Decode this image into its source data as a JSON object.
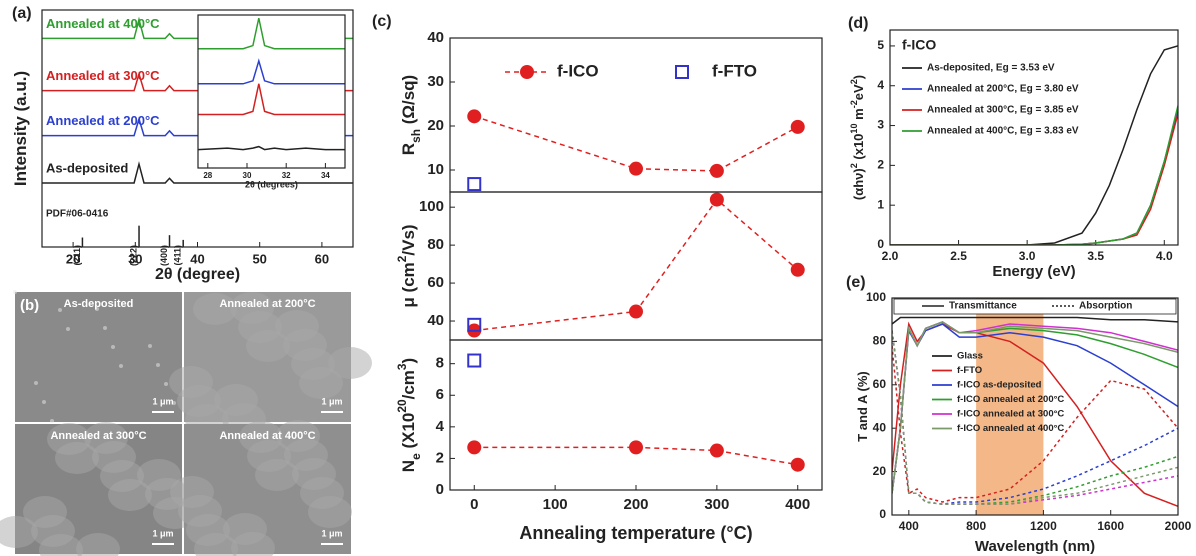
{
  "chart_data": [
    {
      "type": "line",
      "panel_label": "(a)",
      "xlabel": "2θ (degree)",
      "ylabel": [
        {
          "text": "Intensity (a.u.)"
        }
      ],
      "xlim": [
        15,
        65
      ],
      "ylim": [
        0,
        100
      ],
      "xticks": [
        20,
        30,
        40,
        50,
        60
      ],
      "legend": "trace-labels",
      "x": [
        15,
        20,
        25,
        29.8,
        30.6,
        31.4,
        34.8,
        35.5,
        36.2,
        40,
        45,
        50,
        55,
        60,
        65
      ],
      "series": [
        {
          "name": "Annealed at 400°C",
          "color": "#2e9e2e",
          "values": [
            88,
            88,
            88,
            88,
            96,
            88,
            88,
            90,
            88,
            88,
            88,
            88,
            88,
            88,
            88
          ]
        },
        {
          "name": "Annealed at 300°C",
          "color": "#d42020",
          "values": [
            66,
            66,
            66,
            66,
            73,
            66,
            66,
            68,
            66,
            66,
            66,
            66,
            66,
            66,
            66
          ]
        },
        {
          "name": "Annealed at 200°C",
          "color": "#2b3fd0",
          "values": [
            47,
            47,
            47,
            47,
            54,
            47,
            47,
            49,
            47,
            47,
            47,
            47,
            47,
            47,
            47
          ]
        },
        {
          "name": "As-deposited",
          "color": "#222222",
          "values": [
            27,
            27,
            27,
            27,
            35,
            27,
            27,
            29,
            27,
            27,
            27,
            27,
            27,
            27,
            27
          ]
        }
      ],
      "reference": {
        "name": "PDF#06-0416",
        "x": [
          21.5,
          30.6,
          35.5,
          37.7
        ],
        "heights": [
          4,
          9,
          5,
          3
        ],
        "labels": [
          "(211)",
          "(222)",
          "(400)",
          "(411)"
        ]
      }
    },
    {
      "type": "line",
      "xlabel": "2θ (degrees)",
      "xlim": [
        27.5,
        35
      ],
      "ylim": [
        0,
        100
      ],
      "xticks": [
        28,
        30,
        32,
        34
      ],
      "x": [
        27.5,
        29,
        29.8,
        30.3,
        30.6,
        30.9,
        31.4,
        32,
        33,
        34,
        35
      ],
      "series": [
        {
          "color": "#2e9e2e",
          "values": [
            78,
            78,
            78,
            80,
            98,
            80,
            78,
            78,
            78,
            78,
            78
          ]
        },
        {
          "color": "#2b3fd0",
          "values": [
            55,
            55,
            55,
            57,
            70,
            57,
            55,
            55,
            55,
            55,
            55
          ]
        },
        {
          "color": "#d42020",
          "values": [
            35,
            35,
            35,
            37,
            55,
            37,
            35,
            35,
            35,
            35,
            35
          ]
        },
        {
          "color": "#222222",
          "values": [
            12,
            13,
            12,
            13,
            14,
            12,
            13,
            12,
            13,
            12,
            12
          ]
        }
      ]
    },
    {
      "type": "line",
      "panel_label": "(c)",
      "ylabel": [
        {
          "text": "R"
        },
        {
          "text": "sh",
          "pos": "sub"
        },
        {
          "text": " (Ω/sq)"
        }
      ],
      "xlim": [
        -30,
        430
      ],
      "ylim": [
        5,
        40
      ],
      "yticks": [
        10,
        20,
        30,
        40
      ],
      "legend": "top",
      "series": [
        {
          "name": "f-ICO",
          "color": "#e02020",
          "marker": "circle",
          "dash": true,
          "x": [
            0,
            200,
            300,
            400
          ],
          "values": [
            22.2,
            10.3,
            9.8,
            19.8
          ]
        },
        {
          "name": "f-FTO",
          "color": "#3333cc",
          "marker": "square",
          "x": [
            0
          ],
          "values": [
            6.8
          ]
        }
      ]
    },
    {
      "type": "line",
      "ylabel": [
        {
          "text": "μ (cm"
        },
        {
          "text": "2",
          "pos": "sup"
        },
        {
          "text": "/Vs)"
        }
      ],
      "xlim": [
        -30,
        430
      ],
      "ylim": [
        30,
        108
      ],
      "yticks": [
        40,
        60,
        80,
        100
      ],
      "series": [
        {
          "color": "#e02020",
          "marker": "circle",
          "dash": true,
          "x": [
            0,
            200,
            300,
            400
          ],
          "values": [
            35,
            45,
            104,
            67
          ]
        },
        {
          "color": "#3333cc",
          "marker": "square",
          "x": [
            0
          ],
          "values": [
            38
          ]
        }
      ]
    },
    {
      "type": "line",
      "xlabel": "Annealing temperature (°C)",
      "ylabel": [
        {
          "text": "N"
        },
        {
          "text": "e",
          "pos": "sub"
        },
        {
          "text": " (X10"
        },
        {
          "text": "20",
          "pos": "sup"
        },
        {
          "text": "/cm"
        },
        {
          "text": "3",
          "pos": "sup"
        },
        {
          "text": ")"
        }
      ],
      "xlim": [
        -30,
        430
      ],
      "ylim": [
        0,
        9.5
      ],
      "xticks": [
        0,
        100,
        200,
        300,
        400
      ],
      "yticks": [
        0,
        2,
        4,
        6,
        8
      ],
      "series": [
        {
          "color": "#e02020",
          "marker": "circle",
          "dash": true,
          "x": [
            0,
            200,
            300,
            400
          ],
          "values": [
            2.7,
            2.7,
            2.5,
            1.6
          ]
        },
        {
          "color": "#3333cc",
          "marker": "square",
          "x": [
            0
          ],
          "values": [
            8.2
          ]
        }
      ]
    },
    {
      "type": "line",
      "panel_label": "(d)",
      "title": "f-ICO",
      "xlabel": "Energy (eV)",
      "ylabel": [
        {
          "text": "(αhν)"
        },
        {
          "text": "2",
          "pos": "sup"
        },
        {
          "text": " (x10"
        },
        {
          "text": "10",
          "pos": "sup"
        },
        {
          "text": " m"
        },
        {
          "text": "-2",
          "pos": "sup"
        },
        {
          "text": "eV"
        },
        {
          "text": "2",
          "pos": "sup"
        },
        {
          "text": ")"
        }
      ],
      "xlim": [
        2,
        4.1
      ],
      "ylim": [
        0,
        5.4
      ],
      "xticks": [
        {
          "value": 2,
          "label": "2.0"
        },
        {
          "value": 2.5,
          "label": "2.5"
        },
        {
          "value": 3,
          "label": "3.0"
        },
        {
          "value": 3.5,
          "label": "3.5"
        },
        {
          "value": 4,
          "label": "4.0"
        }
      ],
      "yticks": [
        0,
        1,
        2,
        3,
        4,
        5
      ],
      "legend": "top-left",
      "x": [
        2,
        3,
        3.2,
        3.4,
        3.5,
        3.6,
        3.7,
        3.8,
        3.9,
        4.0,
        4.1
      ],
      "series": [
        {
          "name": "As-deposited, Eg = 3.53 eV",
          "color": "#222222",
          "values": [
            0,
            0,
            0.05,
            0.3,
            0.8,
            1.5,
            2.4,
            3.4,
            4.3,
            4.9,
            5.0
          ]
        },
        {
          "name": "Annealed at 200°C, Eg = 3.80 eV",
          "color": "#2b3fd0",
          "values": [
            0,
            0,
            0,
            0.02,
            0.05,
            0.1,
            0.15,
            0.3,
            1.0,
            2.1,
            3.4
          ]
        },
        {
          "name": "Annealed at 300°C, Eg = 3.85 eV",
          "color": "#d42020",
          "values": [
            0,
            0,
            0,
            0.02,
            0.05,
            0.1,
            0.15,
            0.25,
            0.9,
            2.0,
            3.3
          ]
        },
        {
          "name": "Annealed at 400°C, Eg = 3.83 eV",
          "color": "#2e9e2e",
          "values": [
            0,
            0,
            0,
            0.02,
            0.05,
            0.1,
            0.15,
            0.3,
            1.0,
            2.1,
            3.5
          ]
        }
      ]
    },
    {
      "type": "line",
      "panel_label": "(e)",
      "xlabel": "Wavelength (nm)",
      "ylabel": [
        {
          "text": "T and A (%)"
        }
      ],
      "xlim": [
        300,
        2000
      ],
      "ylim": [
        0,
        100
      ],
      "xticks": [
        400,
        800,
        1200,
        1600,
        2000
      ],
      "yticks": [
        0,
        20,
        40,
        60,
        80,
        100
      ],
      "legend": "left",
      "highlight_range": [
        800,
        1200
      ],
      "highlight_color": "#f0a060",
      "style_legend": [
        {
          "name": "Transmittance"
        },
        {
          "name": "Absorption",
          "dash": true
        }
      ],
      "x": [
        300,
        350,
        400,
        450,
        500,
        600,
        700,
        800,
        1000,
        1200,
        1400,
        1600,
        1800,
        2000
      ],
      "series": [
        {
          "name": "Glass",
          "color": "#222222",
          "values": [
            88,
            91,
            91,
            91,
            91,
            91,
            91,
            91,
            91,
            91,
            91,
            90,
            90,
            89
          ]
        },
        {
          "name": "f-FTO",
          "color": "#d42020",
          "values": [
            20,
            60,
            88,
            80,
            85,
            88,
            84,
            84,
            80,
            70,
            50,
            25,
            10,
            4
          ]
        },
        {
          "name": "f-ICO as-deposited",
          "color": "#2b3fd0",
          "values": [
            10,
            40,
            85,
            78,
            85,
            88,
            82,
            82,
            84,
            82,
            78,
            70,
            60,
            50
          ]
        },
        {
          "name": "f-ICO annealed at 200°C",
          "color": "#2e9e2e",
          "values": [
            10,
            40,
            86,
            78,
            86,
            89,
            84,
            84,
            86,
            85,
            83,
            79,
            74,
            68
          ]
        },
        {
          "name": "f-ICO annealed at 300°C",
          "color": "#d030d0",
          "values": [
            10,
            40,
            86,
            78,
            86,
            89,
            84,
            85,
            88,
            87,
            86,
            84,
            80,
            76
          ]
        },
        {
          "name": "f-ICO annealed at 400°C",
          "color": "#7a9a6a",
          "values": [
            10,
            40,
            86,
            78,
            86,
            89,
            84,
            84,
            87,
            86,
            85,
            82,
            79,
            75
          ]
        },
        {
          "color": "#d42020",
          "dash": true,
          "values": [
            78,
            38,
            10,
            12,
            8,
            6,
            8,
            8,
            12,
            25,
            45,
            62,
            58,
            40
          ]
        },
        {
          "color": "#2b3fd0",
          "dash": true,
          "values": [
            85,
            55,
            10,
            10,
            6,
            5,
            6,
            6,
            8,
            12,
            18,
            25,
            32,
            40
          ]
        },
        {
          "color": "#2e9e2e",
          "dash": true,
          "values": [
            85,
            55,
            10,
            10,
            6,
            5,
            5,
            5,
            6,
            9,
            13,
            18,
            22,
            27
          ]
        },
        {
          "color": "#d030d0",
          "dash": true,
          "values": [
            85,
            55,
            10,
            10,
            6,
            5,
            5,
            5,
            5,
            7,
            9,
            12,
            15,
            18
          ]
        },
        {
          "color": "#7a9a6a",
          "dash": true,
          "values": [
            85,
            55,
            10,
            10,
            6,
            5,
            5,
            5,
            5,
            8,
            10,
            14,
            18,
            22
          ]
        }
      ]
    }
  ],
  "sem": {
    "panel_label": "(b)",
    "tiles": [
      {
        "label": "As-deposited",
        "scale": "1 μm"
      },
      {
        "label": "Annealed at 200°C",
        "scale": "1 μm"
      },
      {
        "label": "Annealed at 300°C",
        "scale": "1 μm"
      },
      {
        "label": "Annealed at 400°C",
        "scale": "1 μm"
      }
    ]
  }
}
